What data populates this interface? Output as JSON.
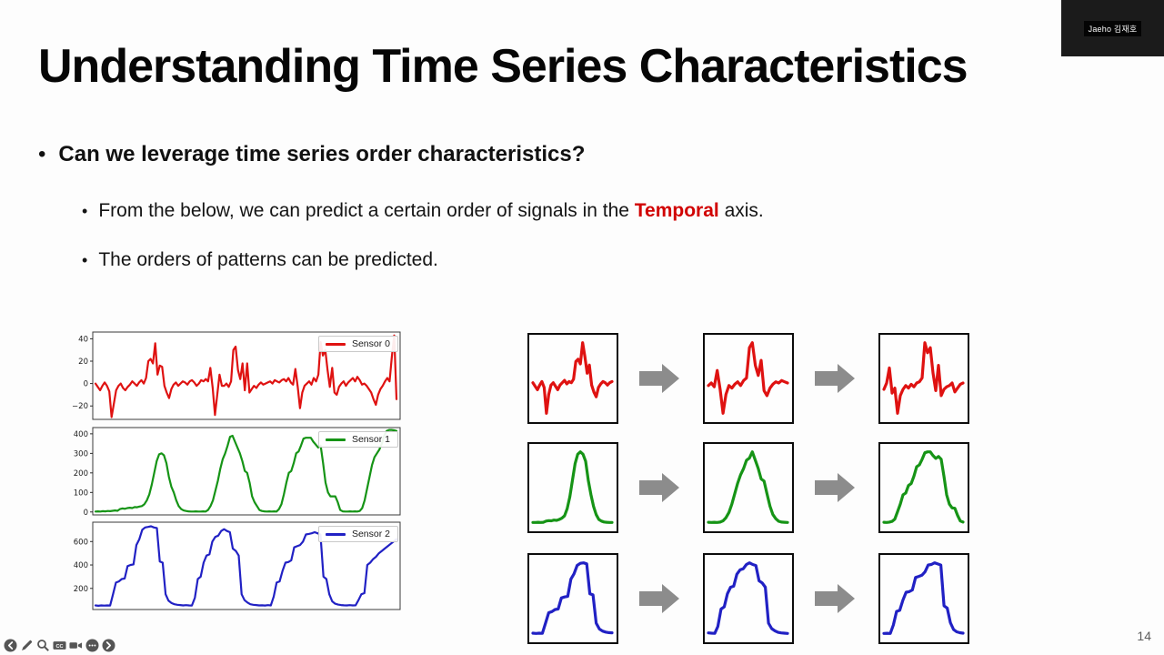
{
  "slide": {
    "title": "Understanding Time Series Characteristics",
    "page_number": "14"
  },
  "webcam": {
    "name": "Jaeho 김재호"
  },
  "bullets": {
    "main": "Can we leverage time series order characteristics?",
    "sub1_before": "From the below, we can predict a certain order of signals in the ",
    "sub1_highlight": "Temporal",
    "sub1_after": " axis.",
    "sub2": "The orders of patterns can be predicted."
  },
  "colors": {
    "sensor0": "#df1211",
    "sensor1": "#169416",
    "sensor2": "#2121c4",
    "highlight": "#d10000",
    "arrow": "#8c8c8c",
    "toolbar_icon": "#555555"
  },
  "toolbar": {
    "icons": [
      "previous-slide",
      "pen",
      "magnifier",
      "closed-captions",
      "camera",
      "more-options",
      "next-slide"
    ],
    "cc_label": "CC"
  },
  "chart_data": {
    "charts": [
      {
        "type": "line",
        "legend": "Sensor 0",
        "color": "#df1211",
        "ylim": [
          -32,
          46
        ],
        "yticks": [
          40,
          20,
          0,
          -20
        ],
        "legend_position": "upper right",
        "values": [
          0,
          -3,
          -6,
          -2,
          1,
          -2,
          -7,
          -30,
          -18,
          -6,
          -2,
          0,
          -4,
          -6,
          -3,
          -1,
          2,
          0,
          -2,
          1,
          3,
          0,
          5,
          20,
          22,
          18,
          36,
          8,
          16,
          15,
          -2,
          -8,
          -13,
          -5,
          -1,
          1,
          -2,
          0,
          2,
          1,
          -1,
          2,
          3,
          1,
          -2,
          0,
          3,
          2,
          4,
          2,
          14,
          -4,
          -28,
          -10,
          8,
          -2,
          -2,
          0,
          -3,
          2,
          30,
          33,
          12,
          4,
          18,
          -6,
          18,
          -8,
          -5,
          -2,
          -4,
          -1,
          1,
          -1,
          0,
          1,
          2,
          0,
          3,
          2,
          1,
          3,
          4,
          2,
          5,
          1,
          -1,
          13,
          -3,
          -22,
          -8,
          -2,
          0,
          2,
          -1,
          5,
          2,
          8,
          37,
          25,
          30,
          12,
          -3,
          14,
          -8,
          -10,
          -3,
          0,
          2,
          -2,
          1,
          3,
          5,
          2,
          6,
          3,
          -1,
          0,
          -2,
          -5,
          -8,
          -14,
          -19,
          -10,
          -5,
          -2,
          2,
          5,
          2,
          24,
          43,
          -14
        ]
      },
      {
        "type": "line",
        "legend": "Sensor 1",
        "color": "#169416",
        "ylim": [
          -15,
          432
        ],
        "yticks": [
          400,
          300,
          200,
          100,
          0
        ],
        "legend_position": "upper right",
        "values": [
          2,
          3,
          2,
          4,
          3,
          5,
          4,
          6,
          8,
          6,
          15,
          18,
          16,
          20,
          22,
          20,
          25,
          24,
          28,
          30,
          40,
          60,
          90,
          140,
          200,
          260,
          295,
          300,
          290,
          250,
          180,
          130,
          100,
          60,
          30,
          15,
          8,
          5,
          3,
          2,
          2,
          3,
          2,
          2,
          3,
          2,
          10,
          30,
          60,
          110,
          160,
          220,
          270,
          300,
          340,
          385,
          390,
          360,
          330,
          300,
          260,
          210,
          200,
          150,
          80,
          50,
          30,
          10,
          5,
          3,
          2,
          3,
          2,
          3,
          2,
          15,
          40,
          90,
          150,
          200,
          210,
          250,
          300,
          310,
          340,
          375,
          380,
          380,
          380,
          360,
          345,
          330,
          340,
          250,
          150,
          100,
          80,
          80,
          80,
          50,
          10,
          3,
          2,
          2,
          3,
          2,
          3,
          2,
          5,
          20,
          60,
          120,
          180,
          240,
          280,
          300,
          320,
          350,
          390,
          415,
          420,
          420,
          418,
          415
        ]
      },
      {
        "type": "line",
        "legend": "Sensor 2",
        "color": "#2121c4",
        "ylim": [
          20,
          765
        ],
        "yticks": [
          600,
          400,
          200
        ],
        "legend_position": "upper right",
        "values": [
          55,
          52,
          55,
          53,
          55,
          54,
          150,
          250,
          260,
          280,
          285,
          390,
          400,
          405,
          570,
          620,
          700,
          720,
          725,
          730,
          720,
          715,
          430,
          420,
          150,
          95,
          75,
          65,
          60,
          58,
          55,
          57,
          55,
          54,
          120,
          280,
          300,
          420,
          480,
          490,
          600,
          640,
          650,
          690,
          705,
          690,
          680,
          540,
          520,
          480,
          150,
          100,
          80,
          65,
          60,
          58,
          55,
          56,
          54,
          57,
          55,
          130,
          250,
          260,
          350,
          420,
          425,
          440,
          550,
          560,
          570,
          600,
          660,
          665,
          670,
          680,
          670,
          660,
          300,
          280,
          150,
          90,
          70,
          62,
          58,
          56,
          55,
          57,
          55,
          56,
          100,
          150,
          160,
          400,
          420,
          450,
          470,
          500,
          520,
          540,
          560,
          580,
          600,
          620
        ]
      }
    ],
    "pattern_grid": {
      "rows": [
        {
          "sensor": "Sensor 0",
          "color": "#df1211",
          "cells": [
            [
              0,
              -3,
              -6,
              -2,
              1,
              -4,
              -26,
              -10,
              -2,
              0,
              -3,
              -6,
              -2,
              0,
              2,
              -1,
              1,
              0,
              3,
              18,
              20,
              16,
              34,
              22,
              8,
              15,
              -2,
              -8,
              -12,
              -4,
              -1,
              1,
              0,
              -2,
              0,
              1
            ],
            [
              -2,
              0,
              -3,
              10,
              -5,
              -24,
              -9,
              -2,
              -4,
              -1,
              1,
              -2,
              2,
              4,
              28,
              32,
              14,
              6,
              18,
              -6,
              -10,
              -4,
              -1,
              1,
              0,
              2,
              1,
              0
            ],
            [
              -3,
              2,
              14,
              -6,
              -2,
              -22,
              -8,
              -3,
              0,
              -2,
              1,
              -1,
              2,
              3,
              6,
              34,
              26,
              30,
              10,
              -4,
              16,
              -8,
              -3,
              -1,
              0,
              2,
              -5,
              -2,
              1,
              2
            ]
          ]
        },
        {
          "sensor": "Sensor 1",
          "color": "#169416",
          "cells": [
            [
              2,
              2,
              3,
              2,
              3,
              8,
              10,
              9,
              12,
              11,
              15,
              20,
              30,
              60,
              110,
              180,
              250,
              290,
              300,
              290,
              260,
              180,
              120,
              70,
              35,
              15,
              8,
              4,
              3,
              2,
              2
            ],
            [
              3,
              2,
              3,
              2,
              4,
              10,
              25,
              50,
              90,
              140,
              190,
              230,
              260,
              300,
              310,
              340,
              300,
              260,
              210,
              200,
              140,
              80,
              40,
              20,
              8,
              4,
              3,
              2
            ],
            [
              3,
              2,
              4,
              8,
              20,
              60,
              100,
              150,
              160,
              200,
              210,
              250,
              300,
              310,
              340,
              375,
              380,
              380,
              360,
              345,
              355,
              340,
              250,
              150,
              100,
              80,
              78,
              40,
              10,
              4
            ]
          ]
        },
        {
          "sensor": "Sensor 2",
          "color": "#2121c4",
          "cells": [
            [
              55,
              52,
              55,
              53,
              150,
              250,
              260,
              280,
              285,
              390,
              400,
              405,
              570,
              620,
              700,
              720,
              725,
              715,
              430,
              420,
              150,
              95,
              75,
              65,
              60,
              58
            ],
            [
              60,
              58,
              56,
              120,
              280,
              300,
              420,
              480,
              490,
              600,
              640,
              650,
              690,
              705,
              690,
              680,
              540,
              520,
              480,
              150,
              100,
              80,
              65,
              60,
              58,
              55
            ],
            [
              55,
              57,
              55,
              130,
              250,
              260,
              350,
              420,
              425,
              440,
              550,
              560,
              570,
              600,
              660,
              665,
              680,
              670,
              660,
              300,
              280,
              150,
              90,
              70,
              62,
              58
            ]
          ]
        }
      ]
    }
  }
}
